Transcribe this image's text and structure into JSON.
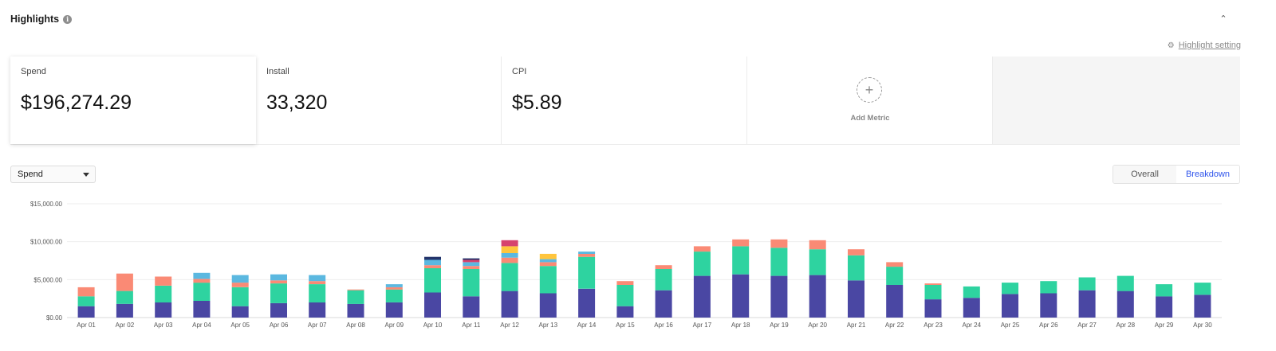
{
  "header": {
    "title": "Highlights"
  },
  "highlight_setting": {
    "label": "Highlight setting"
  },
  "metrics": [
    {
      "label": "Spend",
      "value": "$196,274.29",
      "active": true
    },
    {
      "label": "Install",
      "value": "33,320",
      "active": false
    },
    {
      "label": "CPI",
      "value": "$5.89",
      "active": false
    }
  ],
  "add_metric": {
    "label": "Add Metric"
  },
  "metric_select": {
    "selected": "Spend"
  },
  "view_toggle": {
    "options": [
      "Overall",
      "Breakdown"
    ],
    "selected": "Breakdown"
  },
  "icons": {
    "info": "info-icon",
    "collapse": "chevron-up-icon",
    "settings": "gear-icon",
    "add": "plus-icon",
    "dropdown": "caret-down-icon"
  },
  "chart_data": {
    "type": "bar",
    "stacked": true,
    "ylim": [
      0,
      15000
    ],
    "yticks": [
      "$0.00",
      "$5,000.00",
      "$10,000.00",
      "$15,000.00"
    ],
    "grid": true,
    "categories": [
      "Apr 01",
      "Apr 02",
      "Apr 03",
      "Apr 04",
      "Apr 05",
      "Apr 06",
      "Apr 07",
      "Apr 08",
      "Apr 09",
      "Apr 10",
      "Apr 11",
      "Apr 12",
      "Apr 13",
      "Apr 14",
      "Apr 15",
      "Apr 16",
      "Apr 17",
      "Apr 18",
      "Apr 19",
      "Apr 20",
      "Apr 21",
      "Apr 22",
      "Apr 23",
      "Apr 24",
      "Apr 25",
      "Apr 26",
      "Apr 27",
      "Apr 28",
      "Apr 29",
      "Apr 30"
    ],
    "series": [
      {
        "color": "#4a47a3",
        "values": [
          1500,
          1800,
          2000,
          2200,
          1500,
          1900,
          2000,
          1800,
          2000,
          3300,
          2800,
          3500,
          3200,
          3800,
          1500,
          3600,
          5500,
          5700,
          5500,
          5600,
          4900,
          4300,
          2400,
          2600,
          3100,
          3200,
          3600,
          3500,
          2800,
          3000
        ]
      },
      {
        "color": "#2ed3a0",
        "values": [
          1300,
          1700,
          2200,
          2400,
          2500,
          2600,
          2400,
          1800,
          1700,
          3200,
          3600,
          3700,
          3600,
          4200,
          2800,
          2800,
          3200,
          3700,
          3700,
          3400,
          3300,
          2400,
          1900,
          1500,
          1500,
          1600,
          1700,
          2000,
          1600,
          1600
        ]
      },
      {
        "color": "#fa8a75",
        "values": [
          1200,
          2300,
          1200,
          500,
          600,
          400,
          400,
          100,
          300,
          400,
          400,
          700,
          500,
          400,
          500,
          500,
          700,
          900,
          1100,
          1200,
          800,
          600,
          200,
          0,
          0,
          0,
          0,
          0,
          0,
          0
        ]
      },
      {
        "color": "#5bb8e0",
        "values": [
          0,
          0,
          0,
          800,
          1000,
          800,
          800,
          0,
          400,
          700,
          500,
          600,
          400,
          300,
          0,
          0,
          0,
          0,
          0,
          0,
          0,
          0,
          0,
          0,
          0,
          0,
          0,
          0,
          0,
          0
        ]
      },
      {
        "color": "#ffc53d",
        "values": [
          0,
          0,
          0,
          0,
          0,
          0,
          0,
          0,
          0,
          0,
          0,
          900,
          700,
          0,
          0,
          0,
          0,
          0,
          0,
          0,
          0,
          0,
          0,
          0,
          0,
          0,
          0,
          0,
          0,
          0
        ]
      },
      {
        "color": "#d6436e",
        "values": [
          0,
          0,
          0,
          0,
          0,
          0,
          0,
          0,
          0,
          0,
          300,
          800,
          0,
          0,
          0,
          0,
          0,
          0,
          0,
          0,
          0,
          0,
          0,
          0,
          0,
          0,
          0,
          0,
          0,
          0
        ]
      },
      {
        "color": "#24346b",
        "values": [
          0,
          0,
          0,
          0,
          0,
          0,
          0,
          0,
          0,
          400,
          200,
          0,
          0,
          0,
          0,
          0,
          0,
          0,
          0,
          0,
          0,
          0,
          0,
          0,
          0,
          0,
          0,
          0,
          0,
          0
        ]
      }
    ]
  }
}
